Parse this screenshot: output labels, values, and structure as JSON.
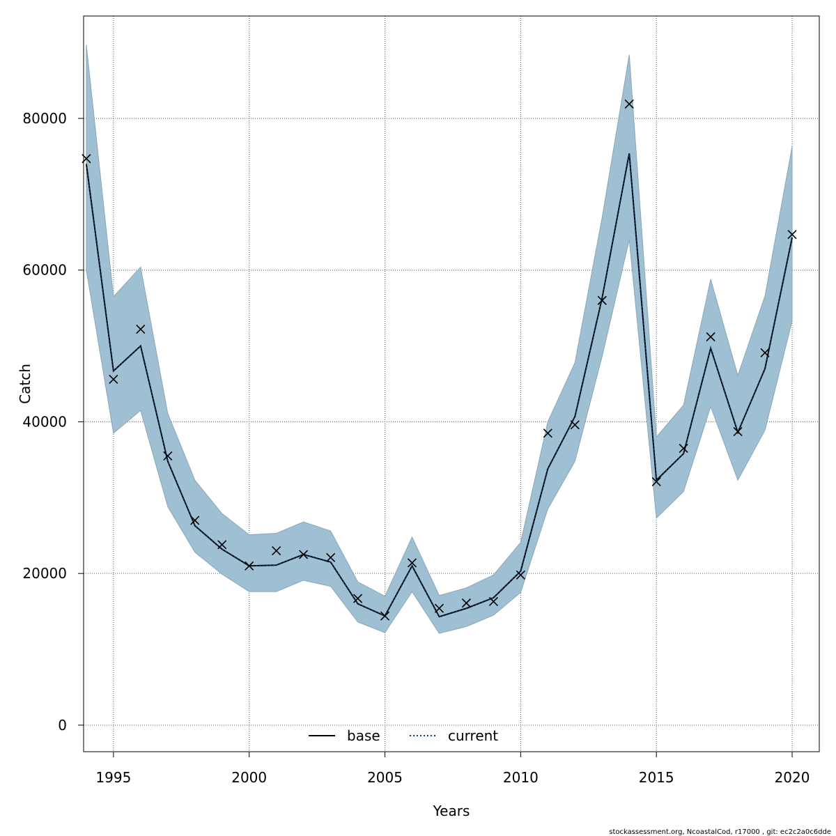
{
  "chart_data": {
    "type": "line",
    "xlabel": "Years",
    "ylabel": "Catch",
    "xlim": [
      1993.9,
      2021.0
    ],
    "ylim": [
      -3500,
      93500
    ],
    "x_ticks": [
      1995,
      2000,
      2005,
      2010,
      2015,
      2020
    ],
    "y_ticks": [
      0,
      20000,
      40000,
      60000,
      80000
    ],
    "grid": true,
    "legend_position": "bottom-center",
    "x": [
      1994,
      1995,
      1996,
      1997,
      1998,
      1999,
      2000,
      2001,
      2002,
      2003,
      2004,
      2005,
      2006,
      2007,
      2008,
      2009,
      2010,
      2011,
      2012,
      2013,
      2014,
      2015,
      2016,
      2017,
      2018,
      2019,
      2020
    ],
    "series": [
      {
        "name": "base",
        "style": "solid",
        "color": "#000000",
        "values": [
          74000,
          46700,
          50000,
          34800,
          26300,
          23200,
          21000,
          21100,
          22500,
          21500,
          16000,
          14400,
          21000,
          14300,
          15400,
          16800,
          20300,
          33800,
          40700,
          56300,
          75400,
          32300,
          35800,
          49700,
          38600,
          47000,
          64300
        ]
      },
      {
        "name": "current",
        "style": "dotted",
        "color": "#0a3a6b",
        "values": [
          74000,
          46700,
          50000,
          34800,
          26300,
          23200,
          21000,
          21100,
          22500,
          21500,
          16000,
          14400,
          21000,
          14300,
          15400,
          16800,
          20300,
          33800,
          40700,
          56300,
          75400,
          32300,
          35800,
          49700,
          38600,
          47000,
          64300
        ]
      }
    ],
    "band": {
      "color": "#9fbfd2",
      "upper": [
        89700,
        56500,
        60400,
        41100,
        32300,
        27900,
        25100,
        25300,
        26800,
        25600,
        18900,
        17000,
        24800,
        17100,
        18100,
        19800,
        24100,
        40000,
        47800,
        66900,
        88400,
        38000,
        42200,
        58800,
        46100,
        56600,
        76300
      ],
      "lower": [
        60000,
        38500,
        41500,
        28800,
        22800,
        19900,
        17600,
        17600,
        19100,
        18300,
        13600,
        12200,
        17600,
        12100,
        13000,
        14500,
        17500,
        28500,
        34800,
        48600,
        64000,
        27300,
        30800,
        42000,
        32300,
        38900,
        53300
      ]
    },
    "observations": {
      "marker": "x",
      "values": [
        74700,
        45600,
        52200,
        35500,
        27000,
        23800,
        21000,
        23000,
        22500,
        22100,
        16700,
        14400,
        21400,
        15400,
        16100,
        16300,
        19800,
        38500,
        39600,
        56000,
        81900,
        32100,
        36500,
        51200,
        38700,
        49100,
        64700
      ]
    }
  },
  "legend": {
    "items": [
      {
        "label": "base"
      },
      {
        "label": "current"
      }
    ]
  },
  "footer": "stockassessment.org, NcoastalCod, r17000 , git: ec2c2a0c6dde"
}
